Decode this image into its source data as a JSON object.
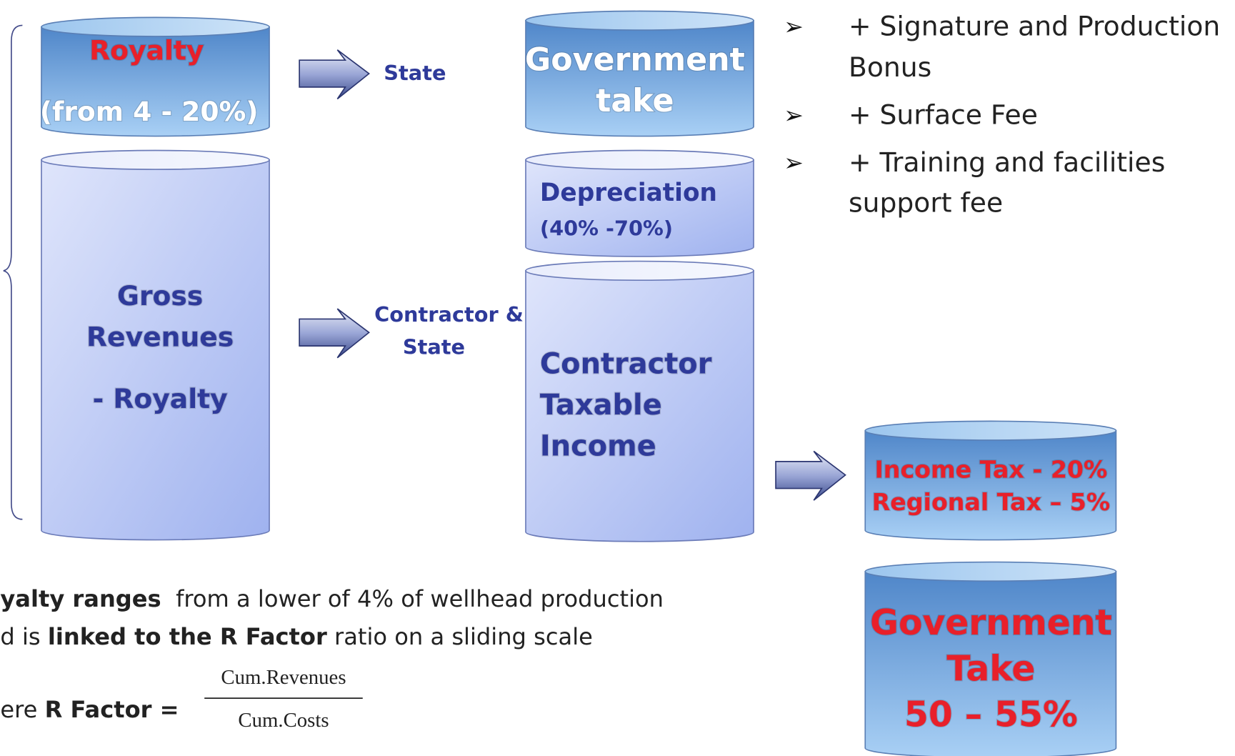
{
  "cylinders": {
    "royalty": [
      "Royalty",
      "(from 4 - 20%)"
    ],
    "gross": [
      "Gross",
      "Revenues",
      "- Royalty"
    ],
    "government_take_top": [
      "Government",
      "take"
    ],
    "depreciation": [
      "Depreciation",
      "(40% -70%)"
    ],
    "contractor": [
      "Contractor",
      "Taxable",
      "Income"
    ],
    "taxes": [
      "Income Tax - 20%",
      "Regional Tax – 5%"
    ],
    "government_take_total": [
      "Government",
      "Take",
      "50 – 55%"
    ]
  },
  "arrow_labels": {
    "state": [
      "State"
    ],
    "contractor_state": [
      "Contractor &",
      "State"
    ]
  },
  "bullets": [
    [
      "+ Signature and Production",
      "Bonus"
    ],
    [
      "+ Surface Fee"
    ],
    [
      "+ Training and facilities",
      "support fee"
    ]
  ],
  "footnote": {
    "line1": [
      {
        "text": "yalty ranges",
        "bold": true
      },
      {
        "text": "  from a lower of 4% of wellhead production",
        "bold": false
      }
    ],
    "line2": [
      {
        "text": "d is ",
        "bold": false
      },
      {
        "text": "linked to the R Factor",
        "bold": true
      },
      {
        "text": " ratio on a sliding scale",
        "bold": false
      }
    ],
    "line3": [
      {
        "text": "ere ",
        "bold": false
      },
      {
        "text": "R Factor =",
        "bold": true
      }
    ],
    "numerator": "Cum.Revenues",
    "denominator": "Cum.Costs"
  }
}
